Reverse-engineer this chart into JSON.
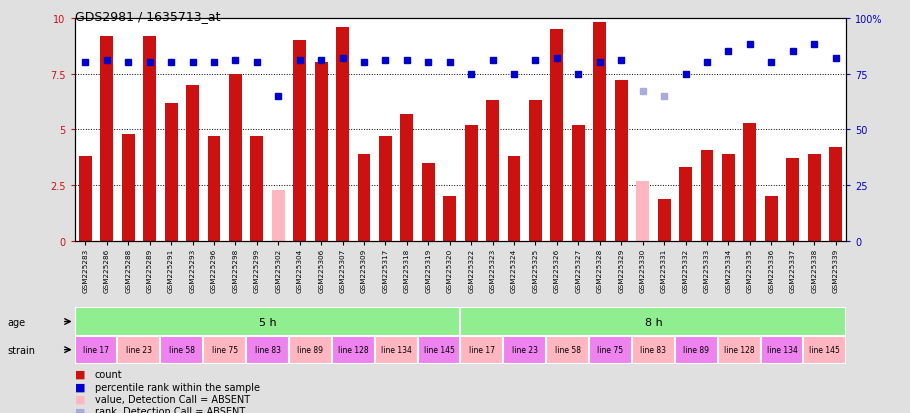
{
  "title": "GDS2981 / 1635713_at",
  "samples": [
    "GSM225283",
    "GSM225286",
    "GSM225288",
    "GSM225289",
    "GSM225291",
    "GSM225293",
    "GSM225296",
    "GSM225298",
    "GSM225299",
    "GSM225302",
    "GSM225304",
    "GSM225306",
    "GSM225307",
    "GSM225309",
    "GSM225317",
    "GSM225318",
    "GSM225319",
    "GSM225320",
    "GSM225322",
    "GSM225323",
    "GSM225324",
    "GSM225325",
    "GSM225326",
    "GSM225327",
    "GSM225328",
    "GSM225329",
    "GSM225330",
    "GSM225331",
    "GSM225332",
    "GSM225333",
    "GSM225334",
    "GSM225335",
    "GSM225336",
    "GSM225337",
    "GSM225338",
    "GSM225339"
  ],
  "bar_values": [
    3.8,
    9.2,
    4.8,
    9.2,
    6.2,
    7.0,
    4.7,
    7.5,
    4.7,
    2.3,
    9.0,
    8.0,
    9.6,
    3.9,
    4.7,
    5.7,
    3.5,
    2.0,
    5.2,
    6.3,
    3.8,
    6.3,
    9.5,
    5.2,
    9.8,
    7.2,
    2.7,
    1.9,
    3.3,
    4.1,
    3.9,
    5.3,
    2.0,
    3.7,
    3.9,
    4.2
  ],
  "bar_absent": [
    false,
    false,
    false,
    false,
    false,
    false,
    false,
    false,
    false,
    true,
    false,
    false,
    false,
    false,
    false,
    false,
    false,
    false,
    false,
    false,
    false,
    false,
    false,
    false,
    false,
    false,
    true,
    false,
    false,
    false,
    false,
    false,
    false,
    false,
    false,
    false
  ],
  "dot_values": [
    8.0,
    8.1,
    8.0,
    8.0,
    8.0,
    8.0,
    8.0,
    8.1,
    8.0,
    6.5,
    8.1,
    8.1,
    8.2,
    8.0,
    8.1,
    8.1,
    8.0,
    8.0,
    7.5,
    8.1,
    7.5,
    8.1,
    8.2,
    7.5,
    8.0,
    8.1,
    6.7,
    6.5,
    7.5,
    8.0,
    8.5,
    8.8,
    8.0,
    8.5,
    8.8,
    8.2
  ],
  "dot_absent": [
    false,
    false,
    false,
    false,
    false,
    false,
    false,
    false,
    false,
    false,
    false,
    false,
    false,
    false,
    false,
    false,
    false,
    false,
    false,
    false,
    false,
    false,
    false,
    false,
    false,
    false,
    true,
    true,
    false,
    false,
    false,
    false,
    false,
    false,
    false,
    false
  ],
  "bar_color": "#cc1111",
  "bar_absent_color": "#ffb6c1",
  "dot_color": "#0000cc",
  "dot_absent_color": "#aaaadd",
  "ylim_left": [
    0,
    10
  ],
  "ylim_right": [
    0,
    100
  ],
  "yticks_left": [
    0,
    2.5,
    5.0,
    7.5,
    10
  ],
  "yticks_right": [
    0,
    25,
    50,
    75,
    100
  ],
  "hlines": [
    2.5,
    5.0,
    7.5
  ],
  "bg_color": "#e0e0e0",
  "plot_bg": "#ffffff",
  "xtick_bg": "#c8c8c8",
  "age_groups": [
    {
      "label": "5 h",
      "start": 0,
      "end": 18,
      "color": "#90ee90"
    },
    {
      "label": "8 h",
      "start": 18,
      "end": 36,
      "color": "#90ee90"
    }
  ],
  "strain_groups": [
    {
      "label": "line 17",
      "start": 0,
      "end": 2,
      "color": "#ee82ee"
    },
    {
      "label": "line 23",
      "start": 2,
      "end": 4,
      "color": "#ffb6c1"
    },
    {
      "label": "line 58",
      "start": 4,
      "end": 6,
      "color": "#ee82ee"
    },
    {
      "label": "line 75",
      "start": 6,
      "end": 8,
      "color": "#ffb6c1"
    },
    {
      "label": "line 83",
      "start": 8,
      "end": 10,
      "color": "#ee82ee"
    },
    {
      "label": "line 89",
      "start": 10,
      "end": 12,
      "color": "#ffb6c1"
    },
    {
      "label": "line 128",
      "start": 12,
      "end": 14,
      "color": "#ee82ee"
    },
    {
      "label": "line 134",
      "start": 14,
      "end": 16,
      "color": "#ffb6c1"
    },
    {
      "label": "line 145",
      "start": 16,
      "end": 18,
      "color": "#ee82ee"
    },
    {
      "label": "line 17",
      "start": 18,
      "end": 20,
      "color": "#ffb6c1"
    },
    {
      "label": "line 23",
      "start": 20,
      "end": 22,
      "color": "#ee82ee"
    },
    {
      "label": "line 58",
      "start": 22,
      "end": 24,
      "color": "#ffb6c1"
    },
    {
      "label": "line 75",
      "start": 24,
      "end": 26,
      "color": "#ee82ee"
    },
    {
      "label": "line 83",
      "start": 26,
      "end": 28,
      "color": "#ffb6c1"
    },
    {
      "label": "line 89",
      "start": 28,
      "end": 30,
      "color": "#ee82ee"
    },
    {
      "label": "line 128",
      "start": 30,
      "end": 32,
      "color": "#ffb6c1"
    },
    {
      "label": "line 134",
      "start": 32,
      "end": 34,
      "color": "#ee82ee"
    },
    {
      "label": "line 145",
      "start": 34,
      "end": 36,
      "color": "#ffb6c1"
    }
  ],
  "legend_labels": [
    "count",
    "percentile rank within the sample",
    "value, Detection Call = ABSENT",
    "rank, Detection Call = ABSENT"
  ],
  "legend_colors": [
    "#cc1111",
    "#0000cc",
    "#ffb6c1",
    "#aaaadd"
  ]
}
